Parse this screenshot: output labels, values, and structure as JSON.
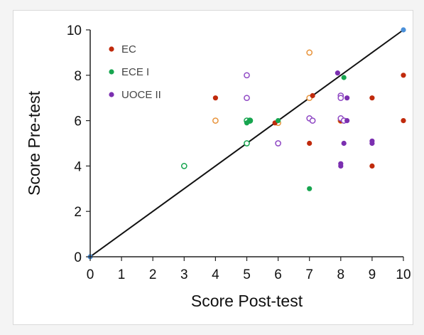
{
  "chart_data": {
    "type": "scatter",
    "title": "",
    "xlabel": "Score Post-test",
    "ylabel": "Score Pre-test",
    "xlim": [
      0,
      10
    ],
    "ylim": [
      0,
      10
    ],
    "xticks": [
      "0",
      "1",
      "2",
      "3",
      "4",
      "5",
      "6",
      "7",
      "8",
      "9",
      "10"
    ],
    "yticks": [
      "0",
      "2",
      "4",
      "6",
      "8",
      "10"
    ],
    "grid": false,
    "legend_position": "top-left",
    "reference_line": {
      "from": [
        0,
        0
      ],
      "to": [
        10,
        10
      ],
      "color": "#111111"
    },
    "series": [
      {
        "name": "EC",
        "color": "#c02a0c",
        "filled": [
          [
            4,
            7
          ],
          [
            5,
            5
          ],
          [
            5.9,
            5.9
          ],
          [
            7,
            5
          ],
          [
            7.1,
            7.1
          ],
          [
            8,
            6
          ],
          [
            9,
            7
          ],
          [
            9,
            4
          ],
          [
            10,
            8
          ],
          [
            10,
            6
          ]
        ],
        "open": [
          [
            4,
            6
          ],
          [
            6,
            5.9
          ],
          [
            7,
            9
          ],
          [
            7,
            7
          ],
          [
            8,
            6
          ]
        ],
        "open_color": "#e8943c"
      },
      {
        "name": "ECE I",
        "color": "#17a54f",
        "filled": [
          [
            5,
            5.9
          ],
          [
            5.1,
            6
          ],
          [
            6,
            6
          ],
          [
            7,
            3
          ],
          [
            8.1,
            7.9
          ]
        ],
        "open": [
          [
            3,
            4
          ],
          [
            5,
            5
          ],
          [
            5,
            6
          ],
          [
            5.1,
            6
          ]
        ],
        "open_color": "#17a54f"
      },
      {
        "name": "UOCE II",
        "color": "#7b2fb0",
        "filled": [
          [
            7.9,
            8.1
          ],
          [
            8,
            4.1
          ],
          [
            8,
            4
          ],
          [
            8.1,
            5
          ],
          [
            8.2,
            7
          ],
          [
            8.2,
            6
          ],
          [
            9,
            5.1
          ],
          [
            9,
            5
          ]
        ],
        "open": [
          [
            5,
            8
          ],
          [
            5,
            7
          ],
          [
            6,
            5
          ],
          [
            7,
            6.1
          ],
          [
            7.1,
            6
          ],
          [
            8,
            7.1
          ],
          [
            8,
            7
          ],
          [
            8,
            6.1
          ],
          [
            8.1,
            6
          ]
        ],
        "open_color": "#8f48c4"
      },
      {
        "name": "",
        "color": "#4a90d9",
        "filled": [
          [
            0,
            0
          ],
          [
            10,
            10
          ]
        ],
        "open": [],
        "open_color": "#4a90d9"
      }
    ]
  }
}
